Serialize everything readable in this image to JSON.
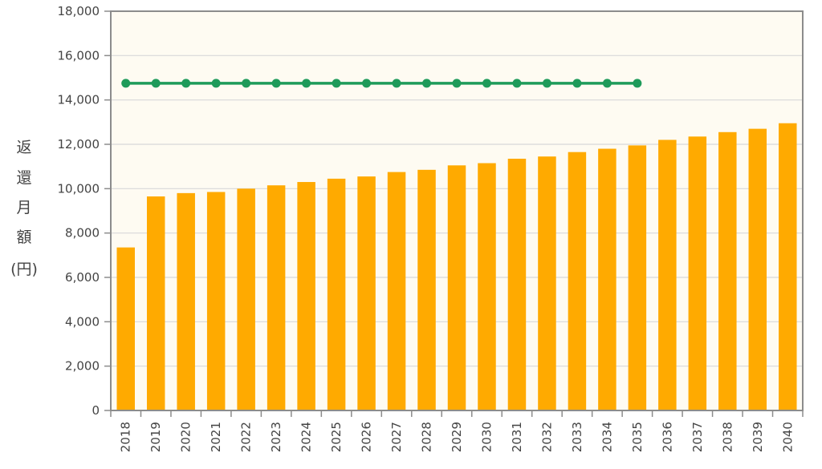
{
  "chart_data": {
    "type": "bar",
    "title": "",
    "xlabel": "",
    "ylabel": "返還月額(円)",
    "ylabel_chars": [
      "返",
      "還",
      "月",
      "額",
      "(円)"
    ],
    "ylim": [
      0,
      18000
    ],
    "yticks": [
      0,
      2000,
      4000,
      6000,
      8000,
      10000,
      12000,
      14000,
      16000,
      18000
    ],
    "ytick_labels": [
      "0",
      "2,000",
      "4,000",
      "6,000",
      "8,000",
      "10,000",
      "12,000",
      "14,000",
      "16,000",
      "18,000"
    ],
    "grid": true,
    "categories": [
      "2018",
      "2019",
      "2020",
      "2021",
      "2022",
      "2023",
      "2024",
      "2025",
      "2026",
      "2027",
      "2028",
      "2029",
      "2030",
      "2031",
      "2032",
      "2033",
      "2034",
      "2035",
      "2036",
      "2037",
      "2038",
      "2039",
      "2040"
    ],
    "series": [
      {
        "type": "bar",
        "values": [
          7350,
          9650,
          9800,
          9850,
          10000,
          10150,
          10300,
          10450,
          10550,
          10750,
          10850,
          11050,
          11150,
          11350,
          11450,
          11650,
          11800,
          11950,
          12200,
          12350,
          12550,
          12700,
          12950
        ]
      },
      {
        "type": "line",
        "values": [
          14750,
          14750,
          14750,
          14750,
          14750,
          14750,
          14750,
          14750,
          14750,
          14750,
          14750,
          14750,
          14750,
          14750,
          14750,
          14750,
          14750,
          14750,
          null,
          null,
          null,
          null,
          null
        ]
      }
    ],
    "colors": {
      "bar": "#FFAA00",
      "line": "#1E9B5A",
      "plot_background": "#FEFBF2",
      "grid": "#D8D8D8",
      "axis": "#8C8C8C"
    }
  }
}
